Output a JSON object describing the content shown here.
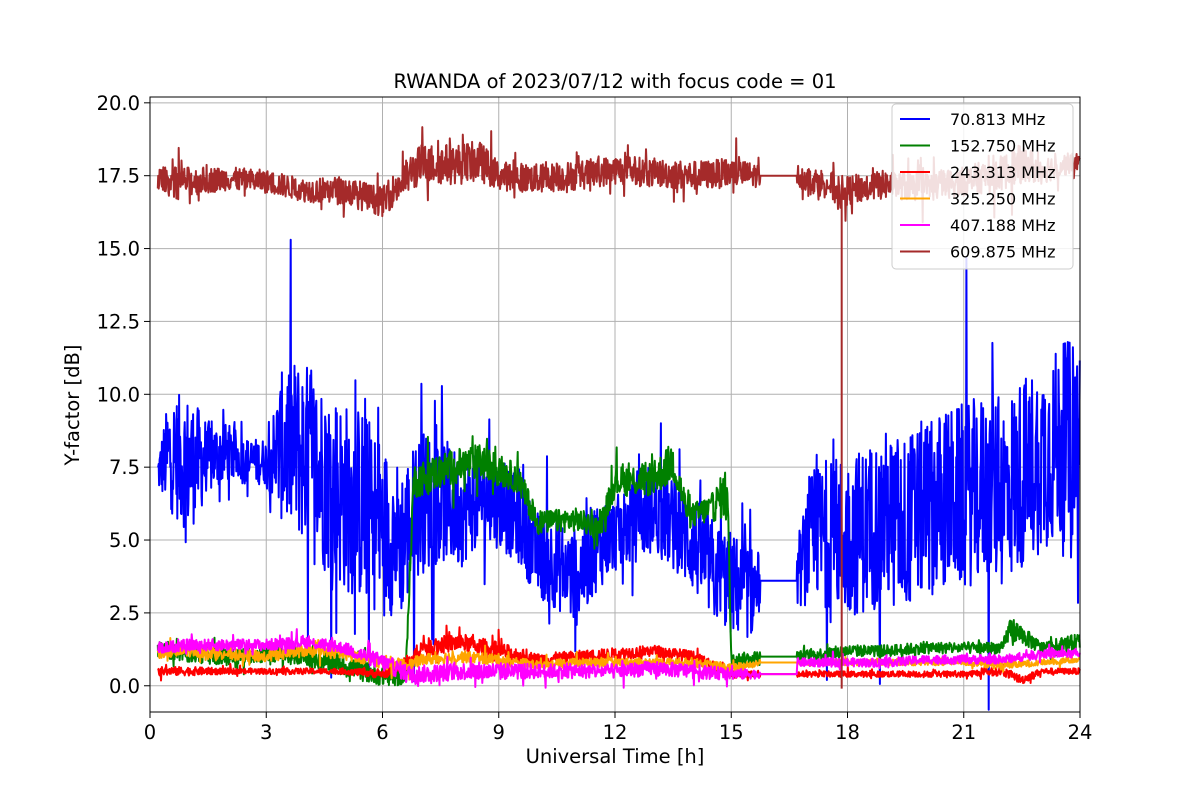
{
  "chart_data": {
    "type": "line",
    "title": "RWANDA of 2023/07/12 with focus code = 01",
    "xlabel": "Universal Time [h]",
    "ylabel": "Y-factor [dB]",
    "xlim": [
      0,
      24
    ],
    "ylim": [
      -0.9,
      20.2
    ],
    "xticks": [
      0,
      3,
      6,
      9,
      12,
      15,
      18,
      21,
      24
    ],
    "xtick_labels": [
      "0",
      "3",
      "6",
      "9",
      "12",
      "15",
      "18",
      "21",
      "24"
    ],
    "yticks": [
      0,
      2.5,
      5,
      7.5,
      10,
      12.5,
      15,
      17.5,
      20
    ],
    "ytick_labels": [
      "0.0",
      "2.5",
      "5.0",
      "7.5",
      "10.0",
      "12.5",
      "15.0",
      "17.5",
      "20.0"
    ],
    "grid": true,
    "legend_position": "top-right",
    "series": [
      {
        "name": " 70.813 MHz",
        "color": "#0000ff",
        "x": [
          0.2,
          0.5,
          1.0,
          1.5,
          2.0,
          2.5,
          3.0,
          3.5,
          4.0,
          4.5,
          5.0,
          5.5,
          6.0,
          6.5,
          7.0,
          7.5,
          8.0,
          8.5,
          9.0,
          9.5,
          10.0,
          10.5,
          11.0,
          11.5,
          12.0,
          12.5,
          13.0,
          13.5,
          14.0,
          14.5,
          15.0,
          15.5,
          15.75,
          16.7,
          17.0,
          17.5,
          18.0,
          18.5,
          19.0,
          19.5,
          20.0,
          20.5,
          21.0,
          21.5,
          22.0,
          22.5,
          23.0,
          23.5,
          24.0
        ],
        "y": [
          7.3,
          8.0,
          7.6,
          7.8,
          8.0,
          7.7,
          7.7,
          8.3,
          8.0,
          7.2,
          6.5,
          6.2,
          5.4,
          5.0,
          6.3,
          6.4,
          6.0,
          6.5,
          6.2,
          5.7,
          4.5,
          4.2,
          3.7,
          4.8,
          5.2,
          5.6,
          6.0,
          5.5,
          4.9,
          4.0,
          3.5,
          3.2,
          3.6,
          3.6,
          5.0,
          5.3,
          5.1,
          5.4,
          5.8,
          5.6,
          6.1,
          6.4,
          6.5,
          6.8,
          6.6,
          7.3,
          7.9,
          8.3,
          8.6
        ],
        "spread": [
          0.6,
          2.0,
          2.4,
          1.3,
          1.0,
          0.8,
          0.8,
          3.0,
          3.2,
          3.3,
          3.3,
          3.4,
          3.0,
          2.6,
          2.5,
          2.2,
          2.0,
          1.6,
          1.5,
          1.5,
          1.5,
          1.6,
          1.7,
          1.6,
          1.3,
          1.4,
          1.4,
          1.6,
          1.7,
          1.8,
          1.8,
          1.6,
          1.0,
          1.0,
          2.2,
          2.6,
          2.8,
          2.9,
          3.0,
          3.0,
          3.1,
          3.1,
          3.2,
          3.2,
          3.3,
          3.3,
          3.3,
          3.4,
          3.5
        ]
      },
      {
        "name": "152.750 MHz",
        "color": "#008000",
        "x": [
          0.2,
          1.0,
          2.0,
          3.0,
          4.0,
          5.0,
          6.0,
          6.6,
          6.8,
          7.5,
          8.5,
          9.5,
          10.0,
          11.0,
          11.6,
          12.0,
          13.0,
          13.5,
          13.9,
          14.5,
          14.9,
          15.0,
          15.75,
          16.7,
          18.0,
          19.0,
          20.0,
          21.0,
          22.0,
          22.2,
          23.0,
          24.0
        ],
        "y": [
          1.3,
          1.1,
          1.0,
          1.1,
          1.0,
          0.7,
          0.3,
          0.3,
          7.0,
          7.4,
          7.7,
          7.1,
          5.6,
          5.7,
          5.4,
          7.0,
          7.1,
          7.7,
          5.8,
          6.1,
          6.7,
          0.9,
          1.0,
          1.0,
          1.2,
          1.2,
          1.3,
          1.3,
          1.3,
          2.0,
          1.3,
          1.5
        ],
        "spread": [
          0.3,
          0.3,
          0.3,
          0.3,
          0.3,
          0.4,
          0.3,
          0.3,
          0.6,
          0.6,
          0.6,
          0.5,
          0.4,
          0.4,
          0.4,
          0.5,
          0.6,
          0.7,
          0.4,
          0.5,
          0.9,
          0.2,
          0.2,
          0.2,
          0.2,
          0.2,
          0.2,
          0.2,
          0.2,
          0.4,
          0.2,
          0.3
        ]
      },
      {
        "name": "243.313 MHz",
        "color": "#ff0000",
        "x": [
          0.2,
          1.0,
          2.0,
          3.0,
          4.0,
          5.0,
          6.0,
          6.7,
          7.0,
          8.0,
          9.0,
          10.0,
          11.0,
          12.0,
          13.0,
          14.0,
          15.0,
          15.75,
          16.7,
          18.0,
          19.0,
          20.0,
          21.0,
          22.0,
          22.5,
          23.0,
          24.0
        ],
        "y": [
          0.5,
          0.5,
          0.5,
          0.5,
          0.5,
          0.5,
          0.4,
          0.8,
          1.3,
          1.5,
          1.2,
          0.9,
          1.0,
          1.1,
          1.2,
          1.0,
          0.4,
          0.4,
          0.4,
          0.4,
          0.4,
          0.4,
          0.4,
          0.5,
          0.2,
          0.5,
          0.5
        ],
        "spread": [
          0.15,
          0.15,
          0.1,
          0.1,
          0.1,
          0.1,
          0.15,
          0.3,
          0.3,
          0.3,
          0.3,
          0.2,
          0.2,
          0.2,
          0.2,
          0.2,
          0.15,
          0.1,
          0.1,
          0.1,
          0.1,
          0.1,
          0.1,
          0.15,
          0.15,
          0.1,
          0.1
        ]
      },
      {
        "name": "325.250 MHz",
        "color": "#ffa500",
        "x": [
          0.2,
          1.0,
          2.0,
          3.0,
          4.0,
          5.0,
          6.0,
          6.7,
          7.0,
          8.0,
          9.0,
          10.0,
          11.0,
          12.0,
          13.0,
          14.0,
          15.0,
          15.75,
          16.7,
          18.0,
          19.0,
          20.0,
          21.0,
          22.0,
          23.0,
          24.0
        ],
        "y": [
          1.1,
          1.2,
          1.1,
          1.0,
          1.2,
          1.1,
          0.8,
          0.7,
          0.9,
          1.0,
          0.9,
          0.7,
          0.8,
          0.8,
          0.8,
          0.8,
          0.6,
          0.8,
          0.8,
          0.8,
          0.8,
          0.8,
          0.8,
          0.7,
          0.8,
          0.9
        ],
        "spread": [
          0.2,
          0.2,
          0.2,
          0.2,
          0.2,
          0.2,
          0.2,
          0.2,
          0.2,
          0.2,
          0.2,
          0.15,
          0.15,
          0.15,
          0.15,
          0.15,
          0.15,
          0.1,
          0.1,
          0.1,
          0.1,
          0.1,
          0.1,
          0.15,
          0.1,
          0.1
        ]
      },
      {
        "name": "407.188 MHz",
        "color": "#ff00ff",
        "x": [
          0.2,
          1.0,
          2.0,
          3.0,
          4.0,
          5.0,
          6.0,
          6.7,
          7.0,
          8.0,
          9.0,
          10.0,
          11.0,
          12.0,
          13.0,
          14.0,
          15.0,
          15.75,
          16.7,
          18.0,
          19.0,
          20.0,
          21.0,
          22.0,
          23.0,
          24.0
        ],
        "y": [
          1.3,
          1.4,
          1.4,
          1.4,
          1.5,
          1.3,
          0.8,
          0.4,
          0.4,
          0.5,
          0.5,
          0.5,
          0.5,
          0.5,
          0.6,
          0.5,
          0.4,
          0.4,
          0.8,
          0.8,
          0.8,
          0.9,
          0.9,
          0.9,
          1.1,
          1.1
        ],
        "spread": [
          0.2,
          0.2,
          0.2,
          0.2,
          0.2,
          0.2,
          0.3,
          0.3,
          0.3,
          0.3,
          0.3,
          0.25,
          0.25,
          0.25,
          0.25,
          0.25,
          0.2,
          0.15,
          0.15,
          0.15,
          0.15,
          0.15,
          0.15,
          0.15,
          0.15,
          0.15
        ]
      },
      {
        "name": "609.875 MHz",
        "color": "#a52a2a",
        "x": [
          0.2,
          1.0,
          2.0,
          3.0,
          4.0,
          5.0,
          6.0,
          6.5,
          7.0,
          8.0,
          8.5,
          9.0,
          10.0,
          11.0,
          12.0,
          13.0,
          14.0,
          15.0,
          15.75,
          16.7,
          17.5,
          17.85,
          18.0,
          19.0,
          20.0,
          21.0,
          22.0,
          22.5,
          23.0,
          24.0
        ],
        "y": [
          17.4,
          17.3,
          17.4,
          17.3,
          17.0,
          17.0,
          16.6,
          17.3,
          17.9,
          17.9,
          18.0,
          17.5,
          17.4,
          17.5,
          17.7,
          17.6,
          17.5,
          17.6,
          17.5,
          17.5,
          17.2,
          16.9,
          17.0,
          17.2,
          17.1,
          17.3,
          17.6,
          17.9,
          17.7,
          18.0
        ],
        "spread": [
          0.4,
          0.5,
          0.4,
          0.4,
          0.4,
          0.5,
          0.5,
          0.6,
          0.7,
          0.7,
          0.7,
          0.5,
          0.5,
          0.5,
          0.5,
          0.5,
          0.5,
          0.5,
          0.4,
          0.4,
          0.5,
          0.6,
          0.5,
          0.5,
          0.5,
          0.5,
          0.6,
          0.7,
          0.5,
          0.3
        ]
      }
    ],
    "annotations_lines": [
      {
        "series": "609.875 MHz",
        "x": [
          17.85,
          17.85
        ],
        "y": [
          17.2,
          -0.1
        ]
      }
    ]
  }
}
